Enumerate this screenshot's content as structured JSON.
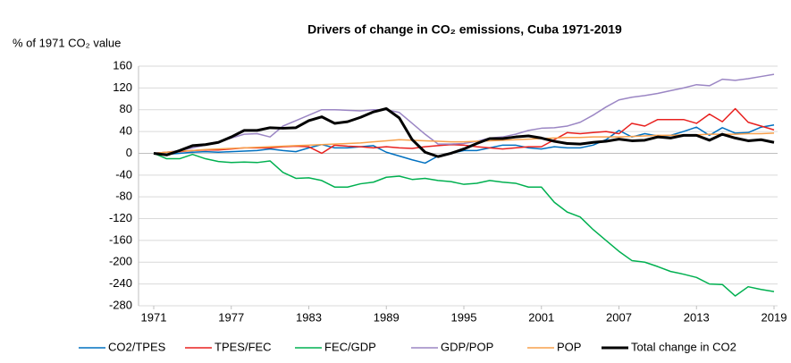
{
  "chart_data": {
    "type": "line",
    "title": "Drivers of change in CO₂ emissions, Cuba 1971-2019",
    "y_axis_label": "% of 1971 CO₂ value",
    "x": [
      1971,
      1972,
      1973,
      1974,
      1975,
      1976,
      1977,
      1978,
      1979,
      1980,
      1981,
      1982,
      1983,
      1984,
      1985,
      1986,
      1987,
      1988,
      1989,
      1990,
      1991,
      1992,
      1993,
      1994,
      1995,
      1996,
      1997,
      1998,
      1999,
      2000,
      2001,
      2002,
      2003,
      2004,
      2005,
      2006,
      2007,
      2008,
      2009,
      2010,
      2011,
      2012,
      2013,
      2014,
      2015,
      2016,
      2017,
      2018,
      2019
    ],
    "xlim": [
      1971,
      2019
    ],
    "xticks": [
      1971,
      1977,
      1983,
      1989,
      1995,
      2001,
      2007,
      2013,
      2019
    ],
    "ylim": [
      -280,
      160
    ],
    "yticks": [
      -280,
      -240,
      -200,
      -160,
      -120,
      -80,
      -40,
      0,
      40,
      80,
      120,
      160
    ],
    "grid": true,
    "legend": "bottom",
    "series": [
      {
        "name": "CO2/TPES",
        "color": "#0070c0",
        "values": [
          0,
          -2,
          0,
          2,
          3,
          2,
          3,
          4,
          5,
          8,
          5,
          3,
          10,
          16,
          10,
          10,
          12,
          14,
          2,
          -5,
          -12,
          -18,
          -5,
          0,
          5,
          5,
          10,
          15,
          15,
          10,
          8,
          12,
          10,
          10,
          15,
          25,
          42,
          30,
          36,
          32,
          33,
          40,
          48,
          33,
          47,
          37,
          38,
          48,
          52
        ]
      },
      {
        "name": "TPES/FEC",
        "color": "#e8211f",
        "values": [
          0,
          2,
          3,
          5,
          6,
          6,
          8,
          10,
          10,
          10,
          12,
          13,
          12,
          0,
          15,
          13,
          12,
          10,
          12,
          10,
          9,
          12,
          14,
          16,
          15,
          12,
          10,
          8,
          10,
          12,
          12,
          25,
          38,
          36,
          38,
          40,
          36,
          55,
          50,
          62,
          62,
          62,
          55,
          72,
          58,
          82,
          57,
          50,
          43
        ]
      },
      {
        "name": "FEC/GDP",
        "color": "#00b050",
        "values": [
          0,
          -10,
          -10,
          -2,
          -10,
          -15,
          -17,
          -16,
          -17,
          -14,
          -35,
          -46,
          -45,
          -50,
          -62,
          -62,
          -56,
          -53,
          -44,
          -42,
          -48,
          -46,
          -50,
          -52,
          -57,
          -55,
          -50,
          -53,
          -55,
          -62,
          -62,
          -90,
          -108,
          -117,
          -140,
          -160,
          -180,
          -197,
          -200,
          -208,
          -217,
          -222,
          -228,
          -240,
          -241,
          -262,
          -245,
          -250,
          -254
        ]
      },
      {
        "name": "GDP/POP",
        "color": "#9b86c4",
        "values": [
          0,
          2,
          5,
          10,
          15,
          20,
          28,
          35,
          36,
          30,
          50,
          60,
          70,
          80,
          80,
          79,
          78,
          80,
          80,
          75,
          55,
          35,
          17,
          17,
          18,
          22,
          28,
          30,
          35,
          42,
          46,
          47,
          50,
          57,
          70,
          85,
          98,
          103,
          106,
          110,
          115,
          120,
          126,
          124,
          136,
          134,
          137,
          141,
          145
        ]
      },
      {
        "name": "POP",
        "color": "#f7a04c",
        "values": [
          0,
          2,
          4,
          5,
          7,
          8,
          9,
          10,
          11,
          12,
          13,
          14,
          15,
          16,
          17,
          18,
          19,
          21,
          23,
          25,
          24,
          23,
          22,
          21,
          21,
          22,
          23,
          24,
          25,
          26,
          27,
          28,
          29,
          29,
          30,
          30,
          30,
          31,
          32,
          33,
          33,
          34,
          34,
          35,
          35,
          35,
          36,
          36,
          37
        ]
      },
      {
        "name": "Total change in CO2",
        "color": "#000000",
        "values": [
          0,
          -3,
          5,
          14,
          16,
          20,
          30,
          42,
          42,
          47,
          46,
          47,
          60,
          67,
          55,
          58,
          66,
          76,
          82,
          65,
          25,
          2,
          -6,
          0,
          8,
          18,
          27,
          27,
          30,
          32,
          28,
          22,
          18,
          17,
          20,
          22,
          26,
          23,
          24,
          30,
          28,
          33,
          33,
          24,
          35,
          28,
          23,
          25,
          20
        ]
      }
    ]
  }
}
